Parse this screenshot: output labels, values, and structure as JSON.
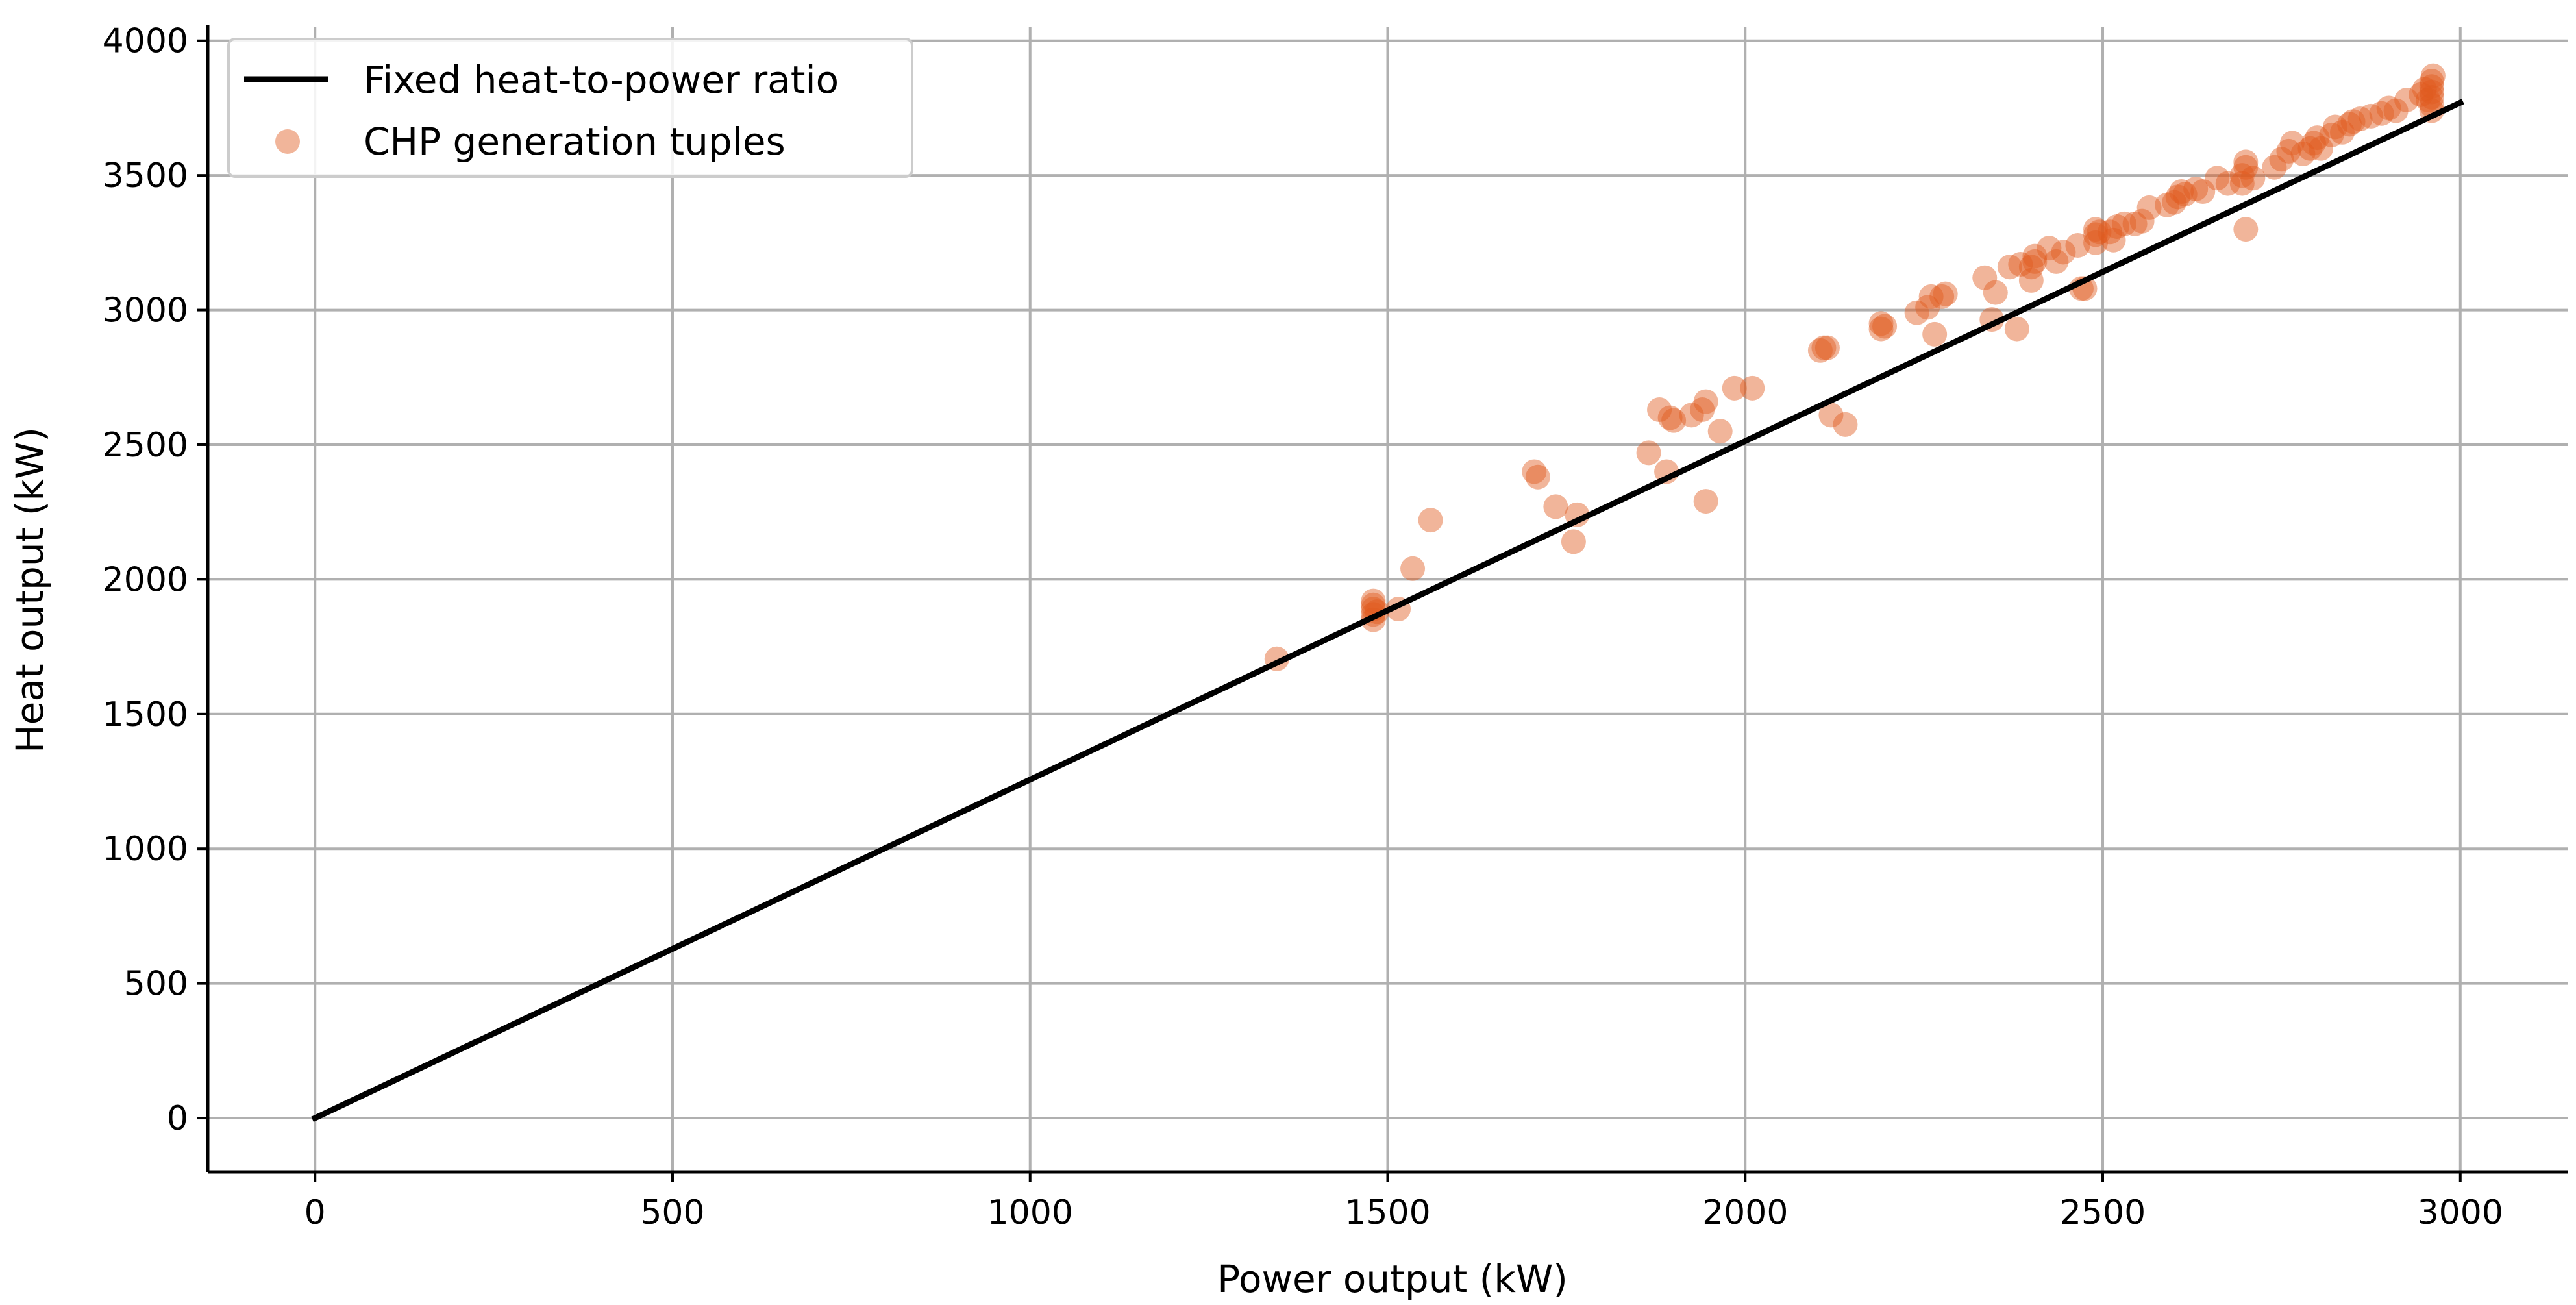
{
  "chart_data": {
    "type": "scatter",
    "title": "",
    "xlabel": "Power output (kW)",
    "ylabel": "Heat output (kW)",
    "xlim": [
      -150,
      3150
    ],
    "ylim": [
      -200,
      4050
    ],
    "xticks": [
      0,
      500,
      1000,
      1500,
      2000,
      2500,
      3000
    ],
    "yticks": [
      0,
      500,
      1000,
      1500,
      2000,
      2500,
      3000,
      3500,
      4000
    ],
    "xtick_labels": [
      "0",
      "500",
      "1000",
      "1500",
      "2000",
      "2500",
      "3000"
    ],
    "ytick_labels": [
      "0",
      "500",
      "1000",
      "1500",
      "2000",
      "2500",
      "3000",
      "3500",
      "4000"
    ],
    "grid": true,
    "legend_position": "top-left",
    "series": [
      {
        "name": "Fixed heat-to-power ratio",
        "kind": "line",
        "color": "#000000",
        "x": [
          0,
          3000
        ],
        "y": [
          0,
          3770
        ]
      },
      {
        "name": "CHP generation tuples",
        "kind": "scatter",
        "color": "#E05A1E",
        "points": [
          [
            1345,
            1705
          ],
          [
            1480,
            1850
          ],
          [
            1480,
            1870
          ],
          [
            1480,
            1890
          ],
          [
            1480,
            1905
          ],
          [
            1480,
            1920
          ],
          [
            1485,
            1880
          ],
          [
            1515,
            1890
          ],
          [
            1535,
            2040
          ],
          [
            1560,
            2220
          ],
          [
            1705,
            2400
          ],
          [
            1710,
            2380
          ],
          [
            1735,
            2270
          ],
          [
            1760,
            2140
          ],
          [
            1765,
            2240
          ],
          [
            1865,
            2470
          ],
          [
            1880,
            2630
          ],
          [
            1890,
            2400
          ],
          [
            1895,
            2600
          ],
          [
            1900,
            2590
          ],
          [
            1925,
            2610
          ],
          [
            1940,
            2630
          ],
          [
            1945,
            2660
          ],
          [
            1945,
            2290
          ],
          [
            1965,
            2550
          ],
          [
            1985,
            2710
          ],
          [
            2010,
            2710
          ],
          [
            2105,
            2850
          ],
          [
            2110,
            2860
          ],
          [
            2115,
            2860
          ],
          [
            2120,
            2610
          ],
          [
            2140,
            2575
          ],
          [
            2190,
            2930
          ],
          [
            2190,
            2950
          ],
          [
            2195,
            2940
          ],
          [
            2240,
            2990
          ],
          [
            2255,
            3010
          ],
          [
            2260,
            3050
          ],
          [
            2265,
            2910
          ],
          [
            2275,
            3050
          ],
          [
            2280,
            3060
          ],
          [
            2335,
            3120
          ],
          [
            2345,
            2965
          ],
          [
            2350,
            3065
          ],
          [
            2370,
            3160
          ],
          [
            2380,
            2930
          ],
          [
            2385,
            3170
          ],
          [
            2400,
            3110
          ],
          [
            2400,
            3160
          ],
          [
            2405,
            3180
          ],
          [
            2405,
            3200
          ],
          [
            2425,
            3230
          ],
          [
            2435,
            3180
          ],
          [
            2445,
            3215
          ],
          [
            2465,
            3240
          ],
          [
            2470,
            3080
          ],
          [
            2475,
            3080
          ],
          [
            2490,
            3250
          ],
          [
            2490,
            3280
          ],
          [
            2490,
            3300
          ],
          [
            2495,
            3290
          ],
          [
            2510,
            3290
          ],
          [
            2515,
            3260
          ],
          [
            2520,
            3310
          ],
          [
            2530,
            3320
          ],
          [
            2545,
            3320
          ],
          [
            2555,
            3330
          ],
          [
            2565,
            3380
          ],
          [
            2590,
            3390
          ],
          [
            2600,
            3400
          ],
          [
            2605,
            3420
          ],
          [
            2610,
            3440
          ],
          [
            2615,
            3430
          ],
          [
            2630,
            3450
          ],
          [
            2640,
            3440
          ],
          [
            2660,
            3490
          ],
          [
            2675,
            3470
          ],
          [
            2695,
            3470
          ],
          [
            2695,
            3500
          ],
          [
            2700,
            3530
          ],
          [
            2700,
            3550
          ],
          [
            2700,
            3300
          ],
          [
            2710,
            3490
          ],
          [
            2740,
            3530
          ],
          [
            2750,
            3560
          ],
          [
            2760,
            3590
          ],
          [
            2765,
            3620
          ],
          [
            2780,
            3580
          ],
          [
            2790,
            3600
          ],
          [
            2795,
            3620
          ],
          [
            2800,
            3640
          ],
          [
            2805,
            3600
          ],
          [
            2820,
            3650
          ],
          [
            2825,
            3680
          ],
          [
            2835,
            3660
          ],
          [
            2845,
            3690
          ],
          [
            2850,
            3700
          ],
          [
            2860,
            3710
          ],
          [
            2875,
            3720
          ],
          [
            2890,
            3730
          ],
          [
            2900,
            3750
          ],
          [
            2910,
            3740
          ],
          [
            2925,
            3780
          ],
          [
            2945,
            3800
          ],
          [
            2950,
            3820
          ],
          [
            2955,
            3780
          ],
          [
            2960,
            3740
          ],
          [
            2960,
            3760
          ],
          [
            2960,
            3790
          ],
          [
            2960,
            3810
          ],
          [
            2960,
            3830
          ],
          [
            2960,
            3850
          ],
          [
            2962,
            3870
          ]
        ]
      }
    ]
  }
}
